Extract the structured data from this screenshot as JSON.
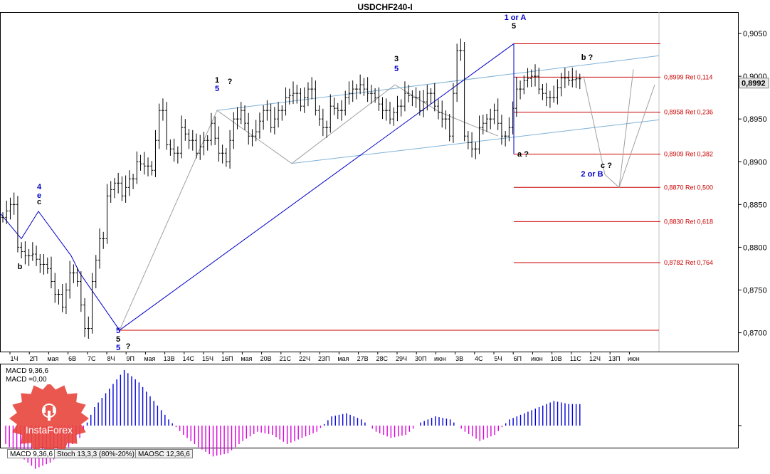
{
  "title": "USDCHF240-I",
  "colors": {
    "background": "#ffffff",
    "candle": "#000000",
    "wave_blue": "#0000c8",
    "channel": "#7fb2d9",
    "fib": "#cc0000",
    "guide_gray": "#a0a0a0",
    "macd_pos": "#0000dd",
    "macd_neg": "#dd00dd",
    "current_price_box": "#e8e8e8",
    "logo": "#e8453c"
  },
  "price_axis": {
    "min": 0.8678,
    "max": 0.9075,
    "ticks": [
      "0,9050",
      "0,9000",
      "0,8950",
      "0,8900",
      "0,8850",
      "0,8800",
      "0,8750",
      "0,8700"
    ],
    "tick_values": [
      0.905,
      0.9,
      0.895,
      0.89,
      0.885,
      0.88,
      0.875,
      0.87
    ],
    "current_price_label": "0,8992",
    "current_price": 0.8992
  },
  "time_axis": {
    "labels": [
      "1Ч",
      "2П",
      "мая",
      "6В",
      "7С",
      "8Ч",
      "9П",
      "мая",
      "13В",
      "14С",
      "15Ч",
      "16П",
      "мая",
      "20В",
      "21С",
      "22Ч",
      "23П",
      "мая",
      "27В",
      "28С",
      "29Ч",
      "30П",
      "июн",
      "3В",
      "4С",
      "5Ч",
      "6П",
      "июн",
      "10В",
      "11С",
      "12Ч",
      "13П",
      "июн"
    ]
  },
  "fib_levels": [
    {
      "label": "0,8999 Ret 0,114",
      "price": 0.8999
    },
    {
      "label": "0,8958 Ret 0,236",
      "price": 0.8958
    },
    {
      "label": "0,8909 Ret 0,382",
      "price": 0.8909
    },
    {
      "label": "0,8870 Ret 0,500",
      "price": 0.887
    },
    {
      "label": "0,8830 Ret 0,618",
      "price": 0.883
    },
    {
      "label": "0,8782 Ret 0,764",
      "price": 0.8782
    }
  ],
  "wave_labels": [
    {
      "text": "1 or A",
      "color": "#0000c8"
    },
    {
      "text": "5",
      "color": "#000000"
    },
    {
      "text": "2 or B",
      "color": "#0000c8"
    },
    {
      "text": "c ?",
      "color": "#000000"
    },
    {
      "text": "b ?",
      "color": "#000000"
    },
    {
      "text": "a ?",
      "color": "#000000"
    },
    {
      "text": "1",
      "color": "#000000"
    },
    {
      "text": "5",
      "color": "#0000c8"
    },
    {
      "text": "?",
      "color": "#000000"
    },
    {
      "text": "3",
      "color": "#000000"
    },
    {
      "text": "5",
      "color": "#0000c8"
    },
    {
      "text": "4",
      "color": "#0000c8"
    },
    {
      "text": "e",
      "color": "#0000c8"
    },
    {
      "text": "c",
      "color": "#000000"
    },
    {
      "text": "b",
      "color": "#000000"
    },
    {
      "text": "5",
      "color": "#0000c8"
    },
    {
      "text": "5",
      "color": "#000000"
    },
    {
      "text": "5",
      "color": "#0000c8"
    },
    {
      "text": "?",
      "color": "#000000"
    }
  ],
  "macd": {
    "label_line1": "MACD 9,36,6",
    "label_line2": "MACD =0,00"
  },
  "tabs": [
    "MACD 9,36,6",
    "Stoch 13,3,3 (80%-20%)",
    "MAOSC 12,36,6"
  ],
  "logo_text": "InstaForex",
  "chart_data": {
    "type": "candlestick",
    "title": "USDCHF240-I",
    "timeframe": "H4",
    "ylim": [
      0.8678,
      0.9075
    ],
    "path": [
      [
        0.8835,
        0.885
      ],
      [
        0.88,
        0.879
      ],
      [
        0.8792,
        0.878
      ],
      [
        0.8775,
        0.8745
      ],
      [
        0.873,
        0.877
      ],
      [
        0.876,
        0.8705
      ],
      [
        0.876,
        0.881
      ],
      [
        0.886,
        0.8875
      ],
      [
        0.886,
        0.888
      ],
      [
        0.89,
        0.8895
      ],
      [
        0.889,
        0.896
      ],
      [
        0.892,
        0.891
      ],
      [
        0.894,
        0.8925
      ],
      [
        0.891,
        0.8925
      ],
      [
        0.8945,
        0.891
      ],
      [
        0.89,
        0.895
      ],
      [
        0.896,
        0.893
      ],
      [
        0.8935,
        0.896
      ],
      [
        0.894,
        0.896
      ],
      [
        0.8975,
        0.898
      ],
      [
        0.8965,
        0.8985
      ],
      [
        0.896,
        0.894
      ],
      [
        0.8965,
        0.896
      ],
      [
        0.8975,
        0.8985
      ],
      [
        0.899,
        0.898
      ],
      [
        0.8975,
        0.896
      ],
      [
        0.895,
        0.8965
      ],
      [
        0.898,
        0.8975
      ],
      [
        0.896,
        0.898
      ],
      [
        0.8965,
        0.895
      ],
      [
        0.893,
        0.903
      ],
      [
        0.893,
        0.8915
      ],
      [
        0.894,
        0.895
      ],
      [
        0.896,
        0.893
      ],
      [
        0.894,
        0.8985
      ],
      [
        0.8995,
        0.9
      ],
      [
        0.8985,
        0.8975
      ],
      [
        0.8975,
        0.8998
      ],
      [
        0.8995,
        0.8997
      ]
    ],
    "macd_values": [
      -0.0006,
      -0.001,
      -0.0014,
      -0.0012,
      -0.0008,
      -0.0004,
      0.0006,
      0.0012,
      0.0018,
      0.0014,
      0.0008,
      0.0002,
      -0.0003,
      -0.0007,
      -0.001,
      -0.0009,
      -0.0005,
      -0.0002,
      -0.0003,
      -0.0006,
      -0.0004,
      -0.0002,
      0.0003,
      0.0004,
      0.0002,
      -0.0002,
      -0.0004,
      -0.0003,
      0.0001,
      0.0003,
      0.0002,
      -0.0002,
      -0.0005,
      -0.0003,
      0.0002,
      0.0004,
      0.0006,
      0.0008,
      0.0007
    ]
  }
}
